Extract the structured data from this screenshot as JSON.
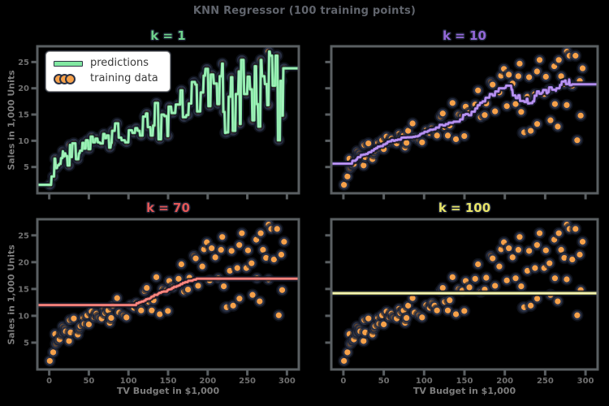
{
  "figure": {
    "title": "KNN Regressor (100 training points)"
  },
  "legend": {
    "items": [
      {
        "label": "predictions",
        "type": "line"
      },
      {
        "label": "training data",
        "type": "points"
      }
    ]
  },
  "colors": {
    "background": "#000000",
    "axes_frame": "#5a5f62",
    "tick_label": "#6f6f6f",
    "axis_label": "#7c7c7c",
    "figure_title": "#61656d",
    "point_fill": "#f6a14a",
    "point_edge": "#2a3145",
    "line_outline": "#151a26",
    "legend_bg": "#ffffff",
    "legend_text": "#3a3a3a"
  },
  "chart_data": {
    "type": "scatter",
    "title": "KNN Regressor (100 training points)",
    "xlabel": "TV Budget in $1,000",
    "ylabel": "Sales in 1,000 Units",
    "xlim": [
      -15,
      315
    ],
    "ylim": [
      0,
      28
    ],
    "x_ticks": [
      0,
      50,
      100,
      150,
      200,
      250,
      300
    ],
    "y_ticks": [
      5,
      10,
      15,
      20,
      25
    ],
    "grid": false,
    "legend_position": "upper left (first subplot only)",
    "subplots": [
      {
        "key": "k1",
        "title": "k = 1",
        "k": 1,
        "title_color": "#6fd48d",
        "line_color": "#82e8a2",
        "line_core": "#aef2c3"
      },
      {
        "key": "k10",
        "title": "k = 10",
        "k": 10,
        "title_color": "#9368d8",
        "line_color": "#a379e6",
        "line_core": "#c3a4f2"
      },
      {
        "key": "k70",
        "title": "k = 70",
        "k": 70,
        "title_color": "#e45757",
        "line_color": "#ed6a66",
        "line_core": "#f79d92"
      },
      {
        "key": "k100",
        "title": "k = 100",
        "k": 100,
        "title_color": "#e8e468",
        "line_color": "#e6e67f",
        "line_core": "#fafade"
      }
    ],
    "series": [
      {
        "name": "training data",
        "points": [
          [
            0.7,
            1.6
          ],
          [
            5,
            3.2
          ],
          [
            7.5,
            6.6
          ],
          [
            8.5,
            4.8
          ],
          [
            11,
            5.3
          ],
          [
            13,
            5.6
          ],
          [
            16,
            6.7
          ],
          [
            17,
            8.0
          ],
          [
            18,
            7.0
          ],
          [
            19.5,
            7.6
          ],
          [
            21,
            7.1
          ],
          [
            25,
            5.3
          ],
          [
            26,
            9.2
          ],
          [
            27,
            6.9
          ],
          [
            31,
            9.5
          ],
          [
            36,
            6.5
          ],
          [
            38,
            7.6
          ],
          [
            39.5,
            8.1
          ],
          [
            43,
            9.6
          ],
          [
            44.5,
            8.5
          ],
          [
            48,
            10.1
          ],
          [
            50,
            8.4
          ],
          [
            53.5,
            10.8
          ],
          [
            57,
            9.7
          ],
          [
            59.6,
            10.4
          ],
          [
            62.3,
            9.7
          ],
          [
            66.1,
            9.5
          ],
          [
            69,
            11.3
          ],
          [
            70.6,
            10.5
          ],
          [
            74.7,
            11.0
          ],
          [
            76.4,
            8.7
          ],
          [
            78.2,
            9.6
          ],
          [
            80.2,
            11.9
          ],
          [
            85.7,
            13.3
          ],
          [
            88.3,
            10.6
          ],
          [
            93.9,
            10.1
          ],
          [
            97.5,
            9.7
          ],
          [
            102.7,
            12.0
          ],
          [
            107,
            11.5
          ],
          [
            109.8,
            12.4
          ],
          [
            112.9,
            11.9
          ],
          [
            116,
            11.0
          ],
          [
            120.5,
            14.6
          ],
          [
            123.1,
            15.2
          ],
          [
            125.7,
            12.6
          ],
          [
            129.4,
            11.0
          ],
          [
            131.7,
            12.9
          ],
          [
            135.2,
            17.2
          ],
          [
            139.5,
            10.3
          ],
          [
            142.9,
            15.0
          ],
          [
            147.3,
            14.7
          ],
          [
            149.8,
            10.9
          ],
          [
            151.5,
            16.5
          ],
          [
            156.1,
            15.3
          ],
          [
            163.3,
            16.9
          ],
          [
            166.8,
            19.6
          ],
          [
            170.2,
            14.5
          ],
          [
            175.1,
            14.9
          ],
          [
            177,
            17.1
          ],
          [
            182.6,
            21.2
          ],
          [
            184.9,
            20.7
          ],
          [
            187.9,
            15.6
          ],
          [
            193.2,
            19.2
          ],
          [
            195.4,
            22.4
          ],
          [
            198.9,
            23.7
          ],
          [
            202.5,
            16.6
          ],
          [
            205,
            22.6
          ],
          [
            209.6,
            20.9
          ],
          [
            213.4,
            17.0
          ],
          [
            216.8,
            22.3
          ],
          [
            218.4,
            24.7
          ],
          [
            220.3,
            15.5
          ],
          [
            222.4,
            11.5
          ],
          [
            224,
            11.6
          ],
          [
            228,
            18.4
          ],
          [
            230.1,
            22.1
          ],
          [
            232.1,
            11.9
          ],
          [
            237.4,
            18.9
          ],
          [
            239.9,
            23.2
          ],
          [
            240.1,
            13.2
          ],
          [
            243.1,
            25.4
          ],
          [
            248.8,
            18.9
          ],
          [
            250.9,
            22.2
          ],
          [
            255.4,
            19.8
          ],
          [
            256.6,
            13.9
          ],
          [
            261.3,
            24.2
          ],
          [
            262.1,
            17.0
          ],
          [
            265.6,
            12.7
          ],
          [
            266.9,
            25.4
          ],
          [
            269.8,
            22.3
          ],
          [
            273.7,
            20.8
          ],
          [
            276.7,
            16.8
          ],
          [
            276.9,
            27.0
          ],
          [
            280.2,
            26.2
          ],
          [
            283.6,
            20.5
          ],
          [
            287.6,
            26.2
          ],
          [
            289.7,
            10.1
          ],
          [
            292.9,
            21.4
          ],
          [
            294,
            14.8
          ],
          [
            296.4,
            23.8
          ]
        ]
      }
    ],
    "prediction_note": "prediction lines are k-nearest-neighbor means of the training points, evaluated over the x range"
  }
}
